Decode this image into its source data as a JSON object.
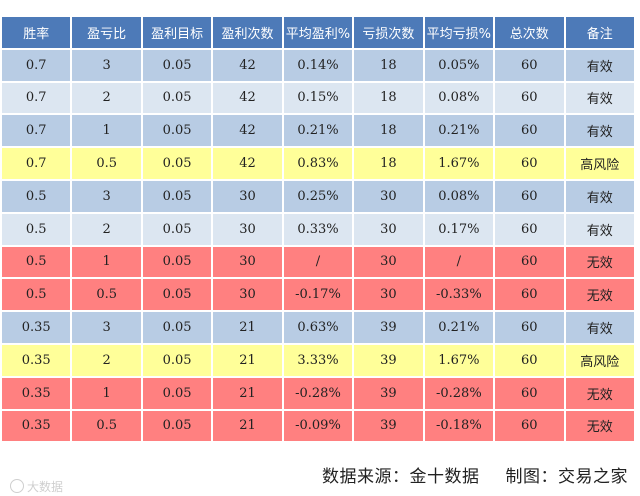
{
  "table": {
    "headers": [
      "胜率",
      "盈亏比",
      "盈利目标",
      "盈利次数",
      "平均盈利%",
      "亏损次数",
      "平均亏损%",
      "总次数",
      "备注"
    ],
    "rows": [
      {
        "style": "blue",
        "cells": [
          "0.7",
          "3",
          "0.05",
          "42",
          "0.14%",
          "18",
          "0.05%",
          "60",
          "有效"
        ]
      },
      {
        "style": "lightblue",
        "cells": [
          "0.7",
          "2",
          "0.05",
          "42",
          "0.15%",
          "18",
          "0.08%",
          "60",
          "有效"
        ]
      },
      {
        "style": "blue",
        "cells": [
          "0.7",
          "1",
          "0.05",
          "42",
          "0.21%",
          "18",
          "0.21%",
          "60",
          "有效"
        ]
      },
      {
        "style": "yellow",
        "cells": [
          "0.7",
          "0.5",
          "0.05",
          "42",
          "0.83%",
          "18",
          "1.67%",
          "60",
          "高风险"
        ]
      },
      {
        "style": "blue",
        "cells": [
          "0.5",
          "3",
          "0.05",
          "30",
          "0.25%",
          "30",
          "0.08%",
          "60",
          "有效"
        ]
      },
      {
        "style": "lightblue",
        "cells": [
          "0.5",
          "2",
          "0.05",
          "30",
          "0.33%",
          "30",
          "0.17%",
          "60",
          "有效"
        ]
      },
      {
        "style": "red",
        "cells": [
          "0.5",
          "1",
          "0.05",
          "30",
          "/",
          "30",
          "/",
          "60",
          "无效"
        ]
      },
      {
        "style": "red",
        "cells": [
          "0.5",
          "0.5",
          "0.05",
          "30",
          "-0.17%",
          "30",
          "-0.33%",
          "60",
          "无效"
        ]
      },
      {
        "style": "blue",
        "cells": [
          "0.35",
          "3",
          "0.05",
          "21",
          "0.63%",
          "39",
          "0.21%",
          "60",
          "有效"
        ]
      },
      {
        "style": "yellow",
        "cells": [
          "0.35",
          "2",
          "0.05",
          "21",
          "3.33%",
          "39",
          "1.67%",
          "60",
          "高风险"
        ]
      },
      {
        "style": "red",
        "cells": [
          "0.35",
          "1",
          "0.05",
          "21",
          "-0.28%",
          "39",
          "-0.28%",
          "60",
          "无效"
        ]
      },
      {
        "style": "red",
        "cells": [
          "0.35",
          "0.5",
          "0.05",
          "21",
          "-0.09%",
          "39",
          "-0.18%",
          "60",
          "无效"
        ]
      }
    ],
    "row_colors": {
      "blue": "#b8cce4",
      "lightblue": "#dce6f1",
      "yellow": "#ffff99",
      "red": "#ff8080",
      "header": "#4d7ab8"
    }
  },
  "footer": {
    "source": "数据来源：金十数据",
    "credit": "制图：交易之家",
    "watermark": "大数据"
  }
}
